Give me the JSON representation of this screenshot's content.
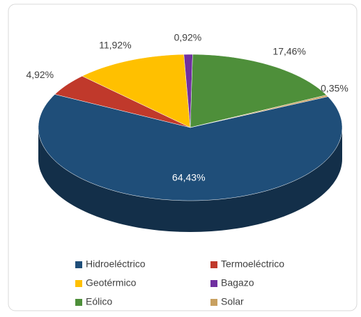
{
  "chart_data": {
    "type": "pie",
    "categories": [
      "Hidroeléctrico",
      "Termoeléctrico",
      "Geotérmico",
      "Bagazo",
      "Eólico",
      "Solar"
    ],
    "values": [
      64.43,
      4.92,
      11.92,
      0.92,
      17.46,
      0.35
    ],
    "value_labels": [
      "64,43%",
      "4,92%",
      "11,92%",
      "0,92%",
      "17,46%",
      "0,35%"
    ],
    "colors": [
      "#1f4e79",
      "#c0392b",
      "#ffc000",
      "#7030a0",
      "#4e8f3a",
      "#c8a060"
    ],
    "legend": "bottom"
  }
}
